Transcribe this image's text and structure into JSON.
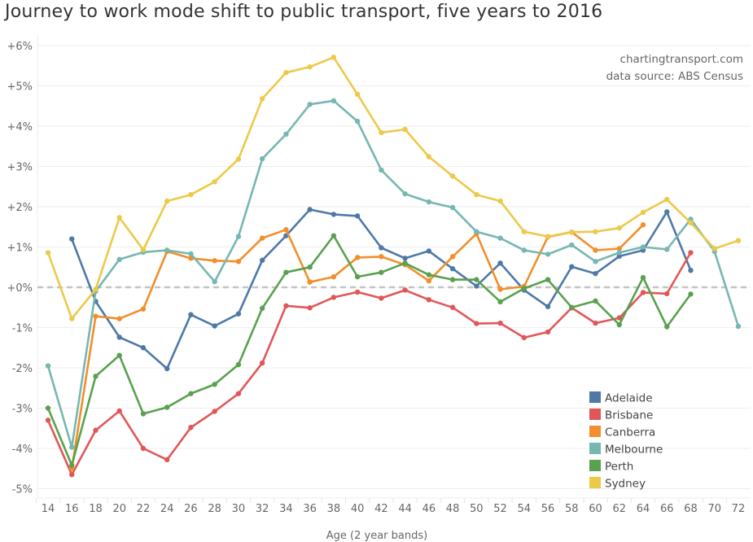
{
  "chart_data": {
    "type": "line",
    "title": "Journey to work mode shift to public transport, five years to 2016",
    "xlabel": "Age (2 year bands)",
    "ylabel": "",
    "ylim": [
      -5.1,
      6.2
    ],
    "yticks": [
      6,
      5,
      4,
      3,
      2,
      1,
      0,
      -1,
      -2,
      -3,
      -4,
      -5
    ],
    "ytick_labels": [
      "+6%",
      "+5%",
      "+4%",
      "+3%",
      "+2%",
      "+1%",
      "+0%",
      "-1%",
      "-2%",
      "-3%",
      "-4%",
      "-5%"
    ],
    "x": [
      14,
      16,
      18,
      20,
      22,
      24,
      26,
      28,
      30,
      32,
      34,
      36,
      38,
      40,
      42,
      44,
      46,
      48,
      50,
      52,
      54,
      56,
      58,
      60,
      62,
      64,
      66,
      68,
      70,
      72
    ],
    "grid": "horizontal",
    "reference_line": 0,
    "legend_position": "bottom-right",
    "annotations": [
      "chartingtransport.com",
      "data source: ABS Census"
    ],
    "series": [
      {
        "name": "Adelaide",
        "color": "#4e79a7",
        "values": [
          null,
          1.2,
          -0.35,
          -1.24,
          -1.5,
          -2.02,
          -0.68,
          -0.96,
          -0.66,
          0.67,
          1.28,
          1.93,
          1.81,
          1.77,
          0.98,
          0.72,
          0.9,
          0.46,
          0.03,
          0.6,
          -0.07,
          -0.48,
          0.51,
          0.34,
          0.77,
          0.92,
          1.87,
          0.42,
          null,
          null
        ]
      },
      {
        "name": "Brisbane",
        "color": "#e15759",
        "values": [
          -3.3,
          -4.65,
          -3.55,
          -3.07,
          -4.0,
          -4.28,
          -3.48,
          -3.08,
          -2.64,
          -1.88,
          -0.46,
          -0.51,
          -0.25,
          -0.12,
          -0.27,
          -0.07,
          -0.31,
          -0.5,
          -0.9,
          -0.89,
          -1.25,
          -1.11,
          -0.51,
          -0.89,
          -0.76,
          -0.13,
          -0.16,
          0.86,
          null,
          null
        ]
      },
      {
        "name": "Canberra",
        "color": "#f28e2b",
        "values": [
          null,
          -4.5,
          -0.72,
          -0.78,
          -0.54,
          0.89,
          0.72,
          0.66,
          0.64,
          1.22,
          1.43,
          0.13,
          0.26,
          0.74,
          0.76,
          0.56,
          0.16,
          0.76,
          1.33,
          -0.05,
          0.02,
          1.25,
          1.37,
          0.92,
          0.96,
          1.55,
          null,
          null,
          null,
          null
        ]
      },
      {
        "name": "Melbourne",
        "color": "#76b7b2",
        "values": [
          -1.95,
          -3.97,
          -0.1,
          0.69,
          0.87,
          0.92,
          0.83,
          0.14,
          1.26,
          3.19,
          3.8,
          4.54,
          4.63,
          4.12,
          2.91,
          2.32,
          2.12,
          1.98,
          1.38,
          1.22,
          0.92,
          0.82,
          1.05,
          0.64,
          0.86,
          1.0,
          0.94,
          1.69,
          0.89,
          -0.97
        ]
      },
      {
        "name": "Perth",
        "color": "#59a14f",
        "values": [
          -3.0,
          -4.42,
          -2.21,
          -1.69,
          -3.14,
          -2.98,
          -2.64,
          -2.41,
          -1.92,
          -0.52,
          0.37,
          0.5,
          1.28,
          0.26,
          0.37,
          0.6,
          0.31,
          0.19,
          0.19,
          -0.36,
          -0.03,
          0.19,
          -0.5,
          -0.34,
          -0.93,
          0.24,
          -0.98,
          -0.17,
          null,
          null
        ]
      },
      {
        "name": "Sydney",
        "color": "#edc948",
        "values": [
          0.86,
          -0.78,
          -0.05,
          1.73,
          0.93,
          2.14,
          2.3,
          2.62,
          3.18,
          4.68,
          5.33,
          5.47,
          5.71,
          4.79,
          3.84,
          3.92,
          3.24,
          2.76,
          2.3,
          2.14,
          1.38,
          1.26,
          1.37,
          1.38,
          1.47,
          1.86,
          2.18,
          1.6,
          0.96,
          1.16
        ]
      }
    ]
  }
}
